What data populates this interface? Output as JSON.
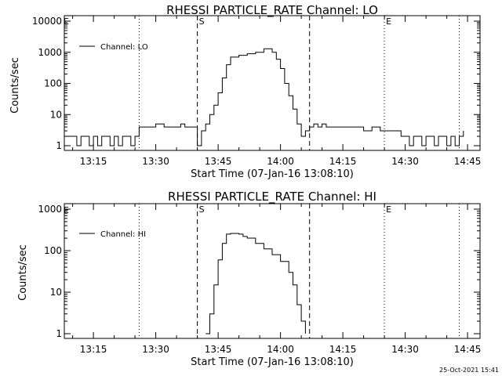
{
  "footer": {
    "timestamp": "25-Oct-2021 15:41"
  },
  "colors": {
    "background": "#ffffff",
    "foreground": "#000000"
  },
  "chart_data": [
    {
      "type": "line",
      "title": "RHESSI PARTICLE_RATE Channel: LO",
      "xlabel": "Start Time (07-Jan-16 13:08:10)",
      "ylabel": "Counts/sec",
      "y_scale": "log",
      "ylim": [
        1,
        10000
      ],
      "yticks": [
        1,
        10,
        100,
        1000,
        10000
      ],
      "ytick_labels": [
        "1",
        "10",
        "100",
        "1000",
        "10000"
      ],
      "xlim": [
        "13:08",
        "14:48"
      ],
      "xticks": [
        "13:15",
        "13:30",
        "13:45",
        "14:00",
        "14:15",
        "14:30",
        "14:45"
      ],
      "legend": {
        "position": "top-left",
        "entries": [
          "Channel: LO"
        ]
      },
      "markers": [
        {
          "label": "",
          "x": "13:26",
          "style": "dotted"
        },
        {
          "label": "S",
          "x": "13:40",
          "style": "dashed"
        },
        {
          "label": "",
          "x": "14:07",
          "style": "dashed"
        },
        {
          "label": "E",
          "x": "14:25",
          "style": "dotted"
        },
        {
          "label": "",
          "x": "14:43",
          "style": "dotted"
        }
      ],
      "corner_label": "E",
      "series": [
        {
          "name": "Channel: LO",
          "x": [
            "13:08",
            "13:10",
            "13:11",
            "13:12",
            "13:13",
            "13:14",
            "13:15",
            "13:16",
            "13:17",
            "13:18",
            "13:19",
            "13:20",
            "13:21",
            "13:22",
            "13:23",
            "13:24",
            "13:25",
            "13:26",
            "13:27",
            "13:28",
            "13:30",
            "13:32",
            "13:34",
            "13:35",
            "13:36",
            "13:37",
            "13:38",
            "13:39",
            "13:40",
            "13:41",
            "13:42",
            "13:43",
            "13:44",
            "13:45",
            "13:46",
            "13:47",
            "13:48",
            "13:50",
            "13:52",
            "13:54",
            "13:56",
            "13:58",
            "13:59",
            "14:00",
            "14:01",
            "14:02",
            "14:03",
            "14:04",
            "14:05",
            "14:06",
            "14:07",
            "14:08",
            "14:09",
            "14:10",
            "14:11",
            "14:12",
            "14:14",
            "14:16",
            "14:18",
            "14:20",
            "14:22",
            "14:24",
            "14:26",
            "14:28",
            "14:29",
            "14:30",
            "14:31",
            "14:32",
            "14:33",
            "14:34",
            "14:35",
            "14:36",
            "14:37",
            "14:38",
            "14:39",
            "14:40",
            "14:41",
            "14:42",
            "14:43",
            "14:44"
          ],
          "values": [
            2,
            2,
            1,
            2,
            2,
            1,
            2,
            1,
            2,
            2,
            1,
            2,
            1,
            2,
            2,
            1,
            2,
            4,
            4,
            4,
            5,
            4,
            4,
            4,
            5,
            4,
            4,
            4,
            1,
            3,
            5,
            10,
            20,
            50,
            150,
            400,
            700,
            800,
            900,
            1000,
            1300,
            1000,
            600,
            300,
            100,
            40,
            15,
            5,
            2,
            3,
            4,
            5,
            4,
            5,
            4,
            4,
            4,
            4,
            4,
            3,
            4,
            3,
            3,
            3,
            2,
            2,
            1,
            2,
            2,
            1,
            2,
            2,
            1,
            2,
            2,
            1,
            2,
            1,
            2,
            3
          ]
        }
      ]
    },
    {
      "type": "line",
      "title": "RHESSI PARTICLE_RATE Channel: HI",
      "xlabel": "Start Time (07-Jan-16 13:08:10)",
      "ylabel": "Counts/sec",
      "y_scale": "log",
      "ylim": [
        1,
        1000
      ],
      "yticks": [
        1,
        10,
        100,
        1000
      ],
      "ytick_labels": [
        "1",
        "10",
        "100",
        "1000"
      ],
      "xlim": [
        "13:08",
        "14:48"
      ],
      "xticks": [
        "13:15",
        "13:30",
        "13:45",
        "14:00",
        "14:15",
        "14:30",
        "14:45"
      ],
      "legend": {
        "position": "top-left",
        "entries": [
          "Channel: HI"
        ]
      },
      "markers": [
        {
          "label": "",
          "x": "13:26",
          "style": "dotted"
        },
        {
          "label": "S",
          "x": "13:40",
          "style": "dashed"
        },
        {
          "label": "",
          "x": "14:07",
          "style": "dashed"
        },
        {
          "label": "E",
          "x": "14:25",
          "style": "dotted"
        },
        {
          "label": "",
          "x": "14:43",
          "style": "dotted"
        }
      ],
      "corner_label": "E",
      "series": [
        {
          "name": "Channel: HI",
          "x": [
            "13:42",
            "13:43",
            "13:44",
            "13:45",
            "13:46",
            "13:47",
            "13:48",
            "13:49",
            "13:50",
            "13:51",
            "13:52",
            "13:54",
            "13:56",
            "13:58",
            "14:00",
            "14:02",
            "14:03",
            "14:04",
            "14:05",
            "14:06"
          ],
          "values": [
            1,
            3,
            15,
            60,
            150,
            250,
            260,
            260,
            250,
            220,
            200,
            150,
            110,
            80,
            55,
            30,
            15,
            5,
            2,
            1
          ]
        }
      ]
    }
  ]
}
